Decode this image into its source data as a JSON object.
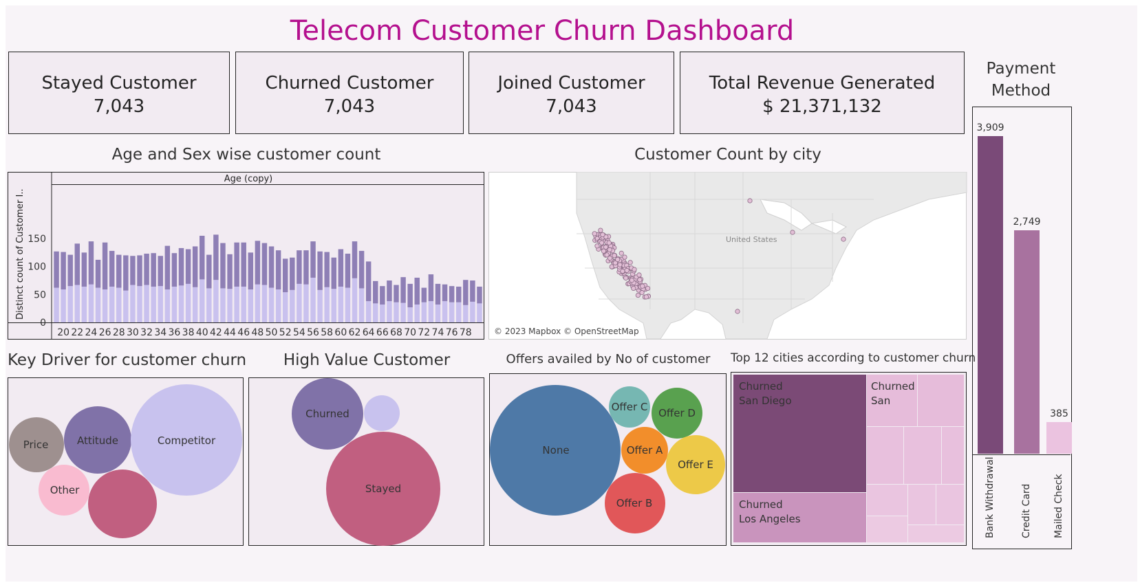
{
  "title": "Telecom Customer Churn Dashboard",
  "kpis": [
    {
      "label": "Stayed Customer",
      "value": "7,043"
    },
    {
      "label": "Churned Customer",
      "value": "7,043"
    },
    {
      "label": "Joined Customer",
      "value": "7,043"
    },
    {
      "label": "Total Revenue Generated",
      "value": "$ 21,371,132"
    }
  ],
  "age_chart": {
    "title": "Age and Sex wise customer count",
    "header": "Age (copy)",
    "ylabel": "Distinct count of Customer I..",
    "yticks": [
      "150",
      "100",
      "50",
      "0"
    ],
    "xticks": [
      "20",
      "22",
      "24",
      "26",
      "28",
      "30",
      "32",
      "34",
      "36",
      "38",
      "40",
      "42",
      "44",
      "46",
      "48",
      "50",
      "52",
      "54",
      "56",
      "58",
      "60",
      "62",
      "64",
      "66",
      "68",
      "70",
      "72",
      "74",
      "76",
      "78"
    ]
  },
  "map": {
    "title": "Customer Count by city",
    "country_label": "United States",
    "attribution": "© 2023 Mapbox © OpenStreetMap"
  },
  "key_driver": {
    "title": "Key Driver for customer churn",
    "labels": {
      "price": "Price",
      "attitude": "Attitude",
      "competitor": "Competitor",
      "other": "Other"
    }
  },
  "high_value": {
    "title": "High Value Customer",
    "labels": {
      "churned": "Churned",
      "stayed": "Stayed"
    }
  },
  "offers": {
    "title": "Offers availed by No of customer",
    "labels": {
      "none": "None",
      "offer_a": "Offer A",
      "offer_b": "Offer B",
      "offer_c": "Offer C",
      "offer_d": "Offer D",
      "offer_e": "Offer E"
    }
  },
  "top_cities": {
    "title": "Top 12 cities according to customer churn",
    "labels": {
      "san_diego_1": "Churned",
      "san_diego_2": "San Diego",
      "los_angeles_1": "Churned",
      "los_angeles_2": "Los Angeles",
      "san_1": "Churned",
      "san_2": "San"
    }
  },
  "payment": {
    "title_line1": "Payment",
    "title_line2": "Method"
  },
  "colors": {
    "title": "#b4108e",
    "male_bar": "#8e7fb5",
    "female_bar": "#c9c1ee",
    "payment_bank": "#7a4a78",
    "payment_credit": "#a8729f",
    "payment_mailed": "#ebc3e0"
  },
  "chart_data": [
    {
      "type": "bar",
      "stacked": true,
      "title": "Age and Sex wise customer count",
      "xlabel": "Age (copy)",
      "ylabel": "Distinct count of Customer I..",
      "ylim": [
        0,
        165
      ],
      "categories": [
        19,
        20,
        21,
        22,
        23,
        24,
        25,
        26,
        27,
        28,
        29,
        30,
        31,
        32,
        33,
        34,
        35,
        36,
        37,
        38,
        39,
        40,
        41,
        42,
        43,
        44,
        45,
        46,
        47,
        48,
        49,
        50,
        51,
        52,
        53,
        54,
        55,
        56,
        57,
        58,
        59,
        60,
        61,
        62,
        63,
        64,
        65,
        66,
        67,
        68,
        69,
        70,
        71,
        72,
        73,
        74,
        75,
        76,
        77,
        78,
        79,
        80
      ],
      "series": [
        {
          "values": [
            62,
            59,
            65,
            67,
            64,
            68,
            62,
            59,
            64,
            62,
            57,
            67,
            65,
            67,
            64,
            65,
            59,
            64,
            66,
            69,
            63,
            77,
            61,
            76,
            61,
            60,
            64,
            64,
            59,
            68,
            67,
            62,
            59,
            54,
            58,
            69,
            68,
            80,
            58,
            63,
            60,
            64,
            62,
            79,
            61,
            38,
            34,
            32,
            38,
            36,
            35,
            27,
            32,
            36,
            38,
            32,
            38,
            36,
            36,
            31,
            37,
            34
          ]
        },
        {
          "values": [
            65,
            67,
            56,
            74,
            61,
            77,
            50,
            84,
            64,
            59,
            63,
            52,
            55,
            56,
            60,
            54,
            78,
            60,
            67,
            62,
            73,
            78,
            60,
            81,
            81,
            62,
            79,
            79,
            66,
            78,
            75,
            74,
            70,
            60,
            58,
            60,
            61,
            65,
            69,
            63,
            56,
            67,
            61,
            66,
            67,
            71,
            40,
            33,
            37,
            31,
            46,
            42,
            48,
            26,
            48,
            37,
            30,
            29,
            28,
            45,
            38,
            30
          ]
        }
      ]
    },
    {
      "type": "bar",
      "title": "Payment Method",
      "categories": [
        "Bank Withdrawal",
        "Credit Card",
        "Mailed Check"
      ],
      "values": [
        3909,
        2749,
        385
      ],
      "data_labels": [
        "3,909",
        "2,749",
        "385"
      ],
      "ylim": [
        0,
        3909
      ]
    }
  ]
}
